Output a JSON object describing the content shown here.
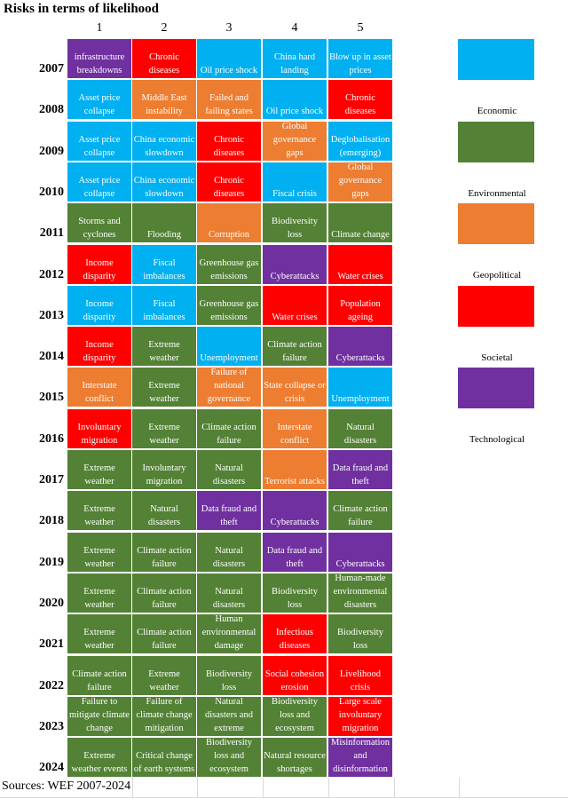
{
  "chart_data": {
    "type": "table",
    "title": "Risks in terms of likelihood",
    "columns": [
      "1",
      "2",
      "3",
      "4",
      "5"
    ],
    "category_colors": {
      "Economic": "#00B0F0",
      "Environmental": "#538135",
      "Geopolitical": "#ED7D31",
      "Societal": "#FF0000",
      "Technological": "#7030A0"
    },
    "legend": [
      "Economic",
      "Environmental",
      "Geopolitical",
      "Societal",
      "Technological"
    ],
    "rows": [
      {
        "year": "2007",
        "cells": [
          {
            "text": "infrastructure breakdowns",
            "category": "Technological"
          },
          {
            "text": "Chronic diseases",
            "category": "Societal"
          },
          {
            "text": "Oil price shock",
            "category": "Economic"
          },
          {
            "text": "China hard landing",
            "category": "Economic"
          },
          {
            "text": "Blow up in asset prices",
            "category": "Economic"
          }
        ]
      },
      {
        "year": "2008",
        "cells": [
          {
            "text": "Asset price collapse",
            "category": "Economic"
          },
          {
            "text": "Middle East instability",
            "category": "Geopolitical"
          },
          {
            "text": "Failed and failing states",
            "category": "Geopolitical"
          },
          {
            "text": "Oil price shock",
            "category": "Economic"
          },
          {
            "text": "Chronic diseases",
            "category": "Societal"
          }
        ]
      },
      {
        "year": "2009",
        "cells": [
          {
            "text": "Asset price collapse",
            "category": "Economic"
          },
          {
            "text": "China economic slowdown",
            "category": "Economic"
          },
          {
            "text": "Chronic diseases",
            "category": "Societal"
          },
          {
            "text": "Global governance gaps",
            "category": "Geopolitical"
          },
          {
            "text": "Deglobalisation (emerging)",
            "category": "Economic"
          }
        ]
      },
      {
        "year": "2010",
        "cells": [
          {
            "text": "Asset price collapse",
            "category": "Economic"
          },
          {
            "text": "China economic slowdown",
            "category": "Economic"
          },
          {
            "text": "Chronic diseases",
            "category": "Societal"
          },
          {
            "text": "Fiscal crisis",
            "category": "Economic"
          },
          {
            "text": "Global governance gaps",
            "category": "Geopolitical"
          }
        ]
      },
      {
        "year": "2011",
        "cells": [
          {
            "text": "Storms and cyclones",
            "category": "Environmental"
          },
          {
            "text": "Flooding",
            "category": "Environmental"
          },
          {
            "text": "Corruption",
            "category": "Geopolitical"
          },
          {
            "text": "Biodiversity loss",
            "category": "Environmental"
          },
          {
            "text": "Climate change",
            "category": "Environmental"
          }
        ]
      },
      {
        "year": "2012",
        "cells": [
          {
            "text": "Income disparity",
            "category": "Societal"
          },
          {
            "text": "Fiscal imbalances",
            "category": "Economic"
          },
          {
            "text": "Greenhouse gas emissions",
            "category": "Environmental"
          },
          {
            "text": "Cyberattacks",
            "category": "Technological"
          },
          {
            "text": "Water crises",
            "category": "Societal"
          }
        ]
      },
      {
        "year": "2013",
        "cells": [
          {
            "text": "Income disparity",
            "category": "Economic"
          },
          {
            "text": "Fiscal imbalances",
            "category": "Economic"
          },
          {
            "text": "Greenhouse gas emissions",
            "category": "Environmental"
          },
          {
            "text": "Water crises",
            "category": "Societal"
          },
          {
            "text": "Population ageing",
            "category": "Societal"
          }
        ]
      },
      {
        "year": "2014",
        "cells": [
          {
            "text": "Income disparity",
            "category": "Societal"
          },
          {
            "text": "Extreme weather",
            "category": "Environmental"
          },
          {
            "text": "Unemployment",
            "category": "Economic"
          },
          {
            "text": "Climate action failure",
            "category": "Environmental"
          },
          {
            "text": "Cyberattacks",
            "category": "Technological"
          }
        ]
      },
      {
        "year": "2015",
        "cells": [
          {
            "text": "Interstate conflict",
            "category": "Geopolitical"
          },
          {
            "text": "Extreme weather",
            "category": "Environmental"
          },
          {
            "text": "Failure of national governance",
            "category": "Geopolitical"
          },
          {
            "text": "State collapse or crisis",
            "category": "Geopolitical"
          },
          {
            "text": "Unemployment",
            "category": "Economic"
          }
        ]
      },
      {
        "year": "2016",
        "cells": [
          {
            "text": "Involuntary migration",
            "category": "Societal"
          },
          {
            "text": "Extreme weather",
            "category": "Environmental"
          },
          {
            "text": "Climate action failure",
            "category": "Environmental"
          },
          {
            "text": "Interstate conflict",
            "category": "Geopolitical"
          },
          {
            "text": "Natural disasters",
            "category": "Environmental"
          }
        ]
      },
      {
        "year": "2017",
        "cells": [
          {
            "text": "Extreme weather",
            "category": "Environmental"
          },
          {
            "text": "Involuntary migration",
            "category": "Environmental"
          },
          {
            "text": "Natural disasters",
            "category": "Environmental"
          },
          {
            "text": "Terrorist attacks",
            "category": "Geopolitical"
          },
          {
            "text": "Data fraud and theft",
            "category": "Technological"
          }
        ]
      },
      {
        "year": "2018",
        "cells": [
          {
            "text": "Extreme weather",
            "category": "Environmental"
          },
          {
            "text": "Natural disasters",
            "category": "Environmental"
          },
          {
            "text": "Data fraud and theft",
            "category": "Technological"
          },
          {
            "text": "Cyberattacks",
            "category": "Technological"
          },
          {
            "text": "Climate action failure",
            "category": "Environmental"
          }
        ]
      },
      {
        "year": "2019",
        "cells": [
          {
            "text": "Extreme weather",
            "category": "Environmental"
          },
          {
            "text": "Climate action failure",
            "category": "Environmental"
          },
          {
            "text": "Natural disasters",
            "category": "Environmental"
          },
          {
            "text": "Data fraud and theft",
            "category": "Technological"
          },
          {
            "text": "Cyberattacks",
            "category": "Technological"
          }
        ]
      },
      {
        "year": "2020",
        "cells": [
          {
            "text": "Extreme weather",
            "category": "Environmental"
          },
          {
            "text": "Climate action failure",
            "category": "Environmental"
          },
          {
            "text": "Natural disasters",
            "category": "Environmental"
          },
          {
            "text": "Biodiversity loss",
            "category": "Environmental"
          },
          {
            "text": "Human-made environmental disasters",
            "category": "Environmental"
          }
        ]
      },
      {
        "year": "2021",
        "cells": [
          {
            "text": "Extreme weather",
            "category": "Environmental"
          },
          {
            "text": "Climate action failure",
            "category": "Environmental"
          },
          {
            "text": "Human environmental damage",
            "category": "Environmental"
          },
          {
            "text": "Infectious diseases",
            "category": "Societal"
          },
          {
            "text": "Biodiversity loss",
            "category": "Environmental"
          }
        ]
      },
      {
        "year": "2022",
        "cells": [
          {
            "text": "Climate action failure",
            "category": "Environmental"
          },
          {
            "text": "Extreme weather",
            "category": "Environmental"
          },
          {
            "text": "Biodiversity loss",
            "category": "Environmental"
          },
          {
            "text": "Social cohesion erosion",
            "category": "Societal"
          },
          {
            "text": "Livelihood crisis",
            "category": "Societal"
          }
        ]
      },
      {
        "year": "2023",
        "cells": [
          {
            "text": "Failure to mitigate climate change",
            "category": "Environmental"
          },
          {
            "text": "Failure of climate change mitigation",
            "category": "Environmental"
          },
          {
            "text": "Natural disasters and extreme",
            "category": "Environmental"
          },
          {
            "text": "Biodiversity loss and ecosystem",
            "category": "Environmental"
          },
          {
            "text": "Large scale involuntary migration",
            "category": "Societal"
          }
        ]
      },
      {
        "year": "2024",
        "cells": [
          {
            "text": "Extreme weather events",
            "category": "Environmental"
          },
          {
            "text": "Critical change of earth systems",
            "category": "Environmental"
          },
          {
            "text": "Biodiversity loss and ecosystem",
            "category": "Environmental"
          },
          {
            "text": "Natural resource shortages",
            "category": "Environmental"
          },
          {
            "text": "Misinformation and disinformation",
            "category": "Technological"
          }
        ]
      }
    ],
    "source": "Sources: WEF 2007-2024"
  }
}
